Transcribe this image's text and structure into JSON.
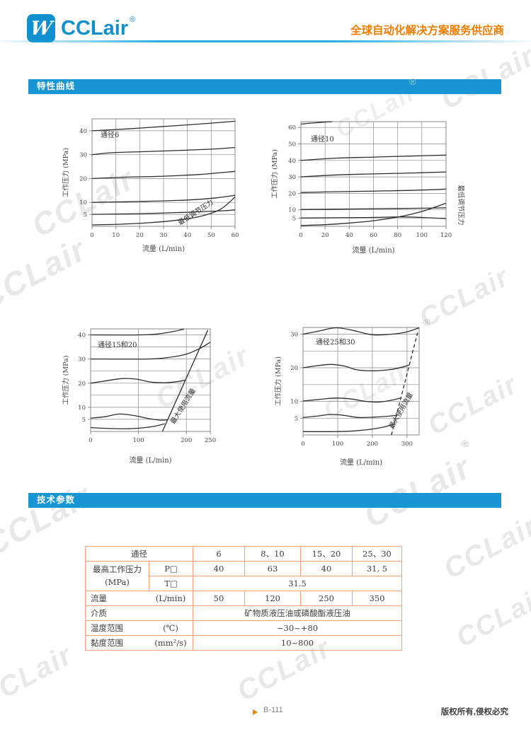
{
  "brand": {
    "logo_mark": "W",
    "logo_text": "CCLair",
    "registered": "®",
    "tagline": "全球自动化解决方案服务供应商",
    "watermark": "CCLair"
  },
  "sections": {
    "curves_title": "特性曲线",
    "params_title": "技术参数"
  },
  "footer": {
    "page": "B-111",
    "copyright": "版权所有,侵权必究"
  },
  "colors": {
    "brand_blue": "#1090cf",
    "bar_blue": "#1796d3",
    "accent_orange": "#f07c00",
    "table_border": "#f0a07a"
  },
  "table": {
    "header": {
      "label": "通径",
      "values": [
        "6",
        "8、10",
        "15、20",
        "25、30"
      ]
    },
    "pressure": {
      "name": "最高工作压力",
      "unit": "(MPa)",
      "p_label": "P□",
      "p_values": [
        "40",
        "63",
        "40",
        "31, 5"
      ],
      "t_label": "T□",
      "t_value": "31.5"
    },
    "flow": {
      "name": "流量",
      "unit": "(L/min)",
      "values": [
        "50",
        "120",
        "250",
        "350"
      ]
    },
    "medium": {
      "name": "介质",
      "value": "矿物质液压油或磷酸酯液压油"
    },
    "temperature": {
      "name": "温度范围",
      "unit": "(℃)",
      "value": "−30~+80"
    },
    "viscosity": {
      "name": "黏度范围",
      "unit": "(mm²/s)",
      "value": "10~800"
    }
  },
  "chart_data": [
    {
      "type": "line",
      "title": "通径6",
      "xlabel": "流量 (L/min)",
      "ylabel": "工作压力 (MPa)",
      "xlim": [
        0,
        60
      ],
      "ylim": [
        0,
        45
      ],
      "x_ticks": [
        0,
        10,
        20,
        30,
        40,
        50,
        60
      ],
      "y_ticks": [
        5,
        10,
        20,
        30,
        40
      ],
      "x_grid": [
        10,
        20,
        30,
        40,
        50,
        60
      ],
      "y_grid": [
        5,
        10,
        20,
        30,
        40
      ],
      "annotation": "最低调节压力",
      "series": [
        {
          "name": "40MPa级",
          "points": [
            [
              0,
              40
            ],
            [
              15,
              40.8
            ],
            [
              30,
              41.8
            ],
            [
              45,
              42.8
            ],
            [
              60,
              44
            ]
          ]
        },
        {
          "name": "30MPa级",
          "points": [
            [
              0,
              30
            ],
            [
              8,
              30.8
            ],
            [
              20,
              31.2
            ],
            [
              35,
              31.7
            ],
            [
              50,
              32.3
            ],
            [
              60,
              33
            ]
          ]
        },
        {
          "name": "20MPa级",
          "points": [
            [
              0,
              20
            ],
            [
              15,
              20.6
            ],
            [
              30,
              21
            ],
            [
              45,
              21.7
            ],
            [
              60,
              23
            ]
          ]
        },
        {
          "name": "10MPa级",
          "points": [
            [
              0,
              10
            ],
            [
              20,
              10.4
            ],
            [
              40,
              11
            ],
            [
              52,
              11.9
            ],
            [
              60,
              13
            ]
          ]
        },
        {
          "name": "5MPa级",
          "points": [
            [
              0,
              5
            ],
            [
              20,
              5.3
            ],
            [
              40,
              5.9
            ],
            [
              55,
              6.5
            ],
            [
              60,
              6.9
            ]
          ]
        },
        {
          "name": "最低调节压力",
          "points": [
            [
              0,
              0.6
            ],
            [
              12,
              0.9
            ],
            [
              24,
              1.5
            ],
            [
              36,
              2.6
            ],
            [
              46,
              4.3
            ],
            [
              54,
              7.2
            ],
            [
              60,
              12.3
            ]
          ]
        }
      ]
    },
    {
      "type": "line",
      "title": "通径10",
      "xlabel": "流量 (L/min)",
      "ylabel": "工作压力 (MPa)",
      "xlim": [
        0,
        120
      ],
      "ylim": [
        0,
        63.5
      ],
      "x_ticks": [
        0,
        20,
        40,
        60,
        80,
        100,
        120
      ],
      "y_ticks": [
        5,
        10,
        20,
        30,
        40,
        50,
        60
      ],
      "x_grid": [
        20,
        40,
        60,
        80,
        100,
        120
      ],
      "y_grid": [
        5,
        10,
        20,
        30,
        40,
        50,
        60
      ],
      "right_label": "最低调节压力",
      "series": [
        {
          "name": "63MPa级",
          "points": [
            [
              0,
              62
            ],
            [
              10,
              62.7
            ],
            [
              19,
              63.2
            ],
            [
              26,
              63.5
            ]
          ]
        },
        {
          "name": "40MPa级",
          "points": [
            [
              0,
              40
            ],
            [
              30,
              41.4
            ],
            [
              60,
              42
            ],
            [
              90,
              42.6
            ],
            [
              120,
              43.2
            ]
          ]
        },
        {
          "name": "30MPa级",
          "points": [
            [
              0,
              30
            ],
            [
              30,
              31.2
            ],
            [
              60,
              31.8
            ],
            [
              95,
              32.4
            ],
            [
              120,
              33
            ]
          ]
        },
        {
          "name": "20MPa级",
          "points": [
            [
              0,
              20.5
            ],
            [
              30,
              21
            ],
            [
              70,
              21.5
            ],
            [
              100,
              22
            ],
            [
              120,
              22.6
            ]
          ]
        },
        {
          "name": "10MPa级",
          "points": [
            [
              0,
              10.2
            ],
            [
              40,
              10.5
            ],
            [
              80,
              10.8
            ],
            [
              120,
              11.2
            ]
          ]
        },
        {
          "name": "5MPa级",
          "points": [
            [
              0,
              5
            ],
            [
              50,
              5.3
            ],
            [
              85,
              5.7
            ],
            [
              105,
              5.2
            ],
            [
              120,
              4.7
            ]
          ]
        },
        {
          "name": "最低调节压力",
          "points": [
            [
              0,
              0.5
            ],
            [
              20,
              1
            ],
            [
              40,
              2
            ],
            [
              60,
              3.4
            ],
            [
              80,
              5.6
            ],
            [
              100,
              9
            ],
            [
              120,
              14
            ]
          ]
        }
      ]
    },
    {
      "type": "line",
      "title": "通径15和20",
      "xlabel": "流量 (L/min)",
      "ylabel": "工作压力 (MPa)",
      "xlim": [
        0,
        250
      ],
      "ylim": [
        0,
        42.5
      ],
      "x_ticks": [
        0,
        100,
        200,
        250
      ],
      "y_ticks": [
        5,
        10,
        20,
        30,
        40
      ],
      "x_grid": [
        100,
        200
      ],
      "y_grid": [
        5,
        10,
        15,
        20,
        25,
        30,
        35,
        40
      ],
      "annotation": "最大使用流量",
      "series": [
        {
          "name": "40MPa级",
          "points": [
            [
              0,
              40
            ],
            [
              100,
              40
            ],
            [
              140,
              40.4
            ],
            [
              170,
              41.3
            ],
            [
              195,
              42.4
            ]
          ]
        },
        {
          "name": "30MPa级",
          "points": [
            [
              0,
              30
            ],
            [
              120,
              30
            ],
            [
              160,
              30.6
            ],
            [
              200,
              32
            ],
            [
              230,
              34.6
            ],
            [
              250,
              37
            ]
          ]
        },
        {
          "name": "20MPa级",
          "points": [
            [
              0,
              20
            ],
            [
              30,
              20.9
            ],
            [
              65,
              21.9
            ],
            [
              95,
              21.7
            ],
            [
              125,
              20.5
            ],
            [
              155,
              20.2
            ],
            [
              180,
              20.6
            ],
            [
              197,
              21.2
            ]
          ]
        },
        {
          "name": "5MPa级",
          "points": [
            [
              0,
              5.5
            ],
            [
              30,
              6.1
            ],
            [
              60,
              7.2
            ],
            [
              90,
              6.6
            ],
            [
              120,
              5.4
            ],
            [
              145,
              4.7
            ],
            [
              161,
              4.8
            ]
          ]
        },
        {
          "name": "最低级",
          "points": [
            [
              0,
              1.6
            ],
            [
              40,
              1.2
            ],
            [
              80,
              1.1
            ],
            [
              110,
              1.5
            ],
            [
              135,
              2.2
            ],
            [
              155,
              3.2
            ]
          ]
        },
        {
          "name": "最大使用流量",
          "points": [
            [
              150,
              0
            ],
            [
              245,
              42
            ]
          ]
        }
      ]
    },
    {
      "type": "line",
      "title": "通径25和30",
      "xlabel": "流量 (L/min)",
      "ylabel": "工作压力 (MPa)",
      "xlim": [
        0,
        335
      ],
      "ylim": [
        0,
        32
      ],
      "x_ticks": [
        0,
        100,
        200,
        300
      ],
      "y_ticks": [
        5,
        10,
        20,
        30
      ],
      "x_grid": [
        100,
        200,
        300
      ],
      "y_grid": [
        5,
        10,
        15,
        20,
        25,
        30
      ],
      "annotation": "最大使用流量",
      "series": [
        {
          "name": "30MPa级",
          "points": [
            [
              0,
              30
            ],
            [
              45,
              30.9
            ],
            [
              95,
              31.9
            ],
            [
              145,
              31.1
            ],
            [
              200,
              29.8
            ],
            [
              255,
              30
            ],
            [
              300,
              30.7
            ],
            [
              335,
              31.9
            ]
          ]
        },
        {
          "name": "20MPa级",
          "points": [
            [
              0,
              20
            ],
            [
              40,
              20.6
            ],
            [
              80,
              21
            ],
            [
              120,
              20.5
            ],
            [
              155,
              19.4
            ],
            [
              205,
              19.1
            ],
            [
              255,
              19.5
            ],
            [
              290,
              20.3
            ],
            [
              306,
              20.8
            ]
          ]
        },
        {
          "name": "10MPa级",
          "points": [
            [
              0,
              10.1
            ],
            [
              50,
              10.6
            ],
            [
              95,
              11
            ],
            [
              140,
              10.7
            ],
            [
              180,
              10
            ],
            [
              220,
              9.8
            ],
            [
              258,
              10.4
            ],
            [
              282,
              11
            ]
          ]
        },
        {
          "name": "5MPa级",
          "points": [
            [
              0,
              5.2
            ],
            [
              40,
              5.6
            ],
            [
              80,
              6.1
            ],
            [
              120,
              5.8
            ],
            [
              160,
              5.2
            ],
            [
              205,
              5.3
            ],
            [
              248,
              5.6
            ],
            [
              269,
              5.8
            ]
          ]
        },
        {
          "name": "最低级",
          "points": [
            [
              0,
              1
            ],
            [
              80,
              1
            ],
            [
              130,
              1.1
            ],
            [
              180,
              1.5
            ],
            [
              225,
              2.2
            ],
            [
              263,
              3.2
            ]
          ]
        },
        {
          "name": "最大使用流量",
          "dashed": true,
          "points": [
            [
              255,
              0
            ],
            [
              332,
              31
            ]
          ]
        }
      ]
    }
  ]
}
